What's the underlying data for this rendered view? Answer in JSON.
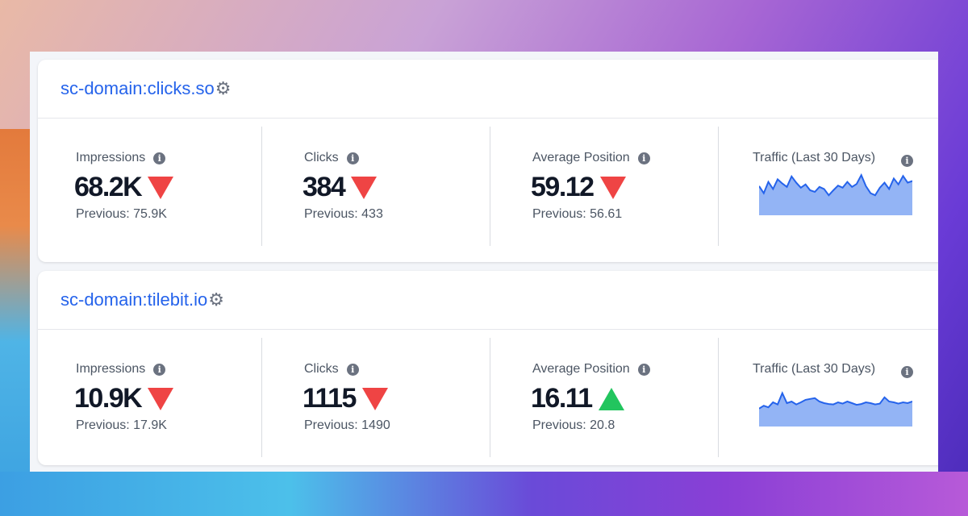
{
  "cards": [
    {
      "domain": "sc-domain:clicks.so",
      "metrics": [
        {
          "label": "Impressions",
          "value": "68.2K",
          "trend": "down",
          "previous": "Previous: 75.9K"
        },
        {
          "label": "Clicks",
          "value": "384",
          "trend": "down",
          "previous": "Previous: 433"
        },
        {
          "label": "Average Position",
          "value": "59.12",
          "trend": "down",
          "previous": "Previous: 56.61"
        }
      ],
      "traffic_label": "Traffic (Last 30 Days)",
      "sparkline": [
        0.62,
        0.45,
        0.72,
        0.55,
        0.78,
        0.68,
        0.6,
        0.85,
        0.7,
        0.58,
        0.66,
        0.52,
        0.48,
        0.6,
        0.55,
        0.4,
        0.52,
        0.63,
        0.58,
        0.72,
        0.6,
        0.67,
        0.88,
        0.62,
        0.45,
        0.4,
        0.58,
        0.7,
        0.55,
        0.8,
        0.66,
        0.86,
        0.7,
        0.74
      ]
    },
    {
      "domain": "sc-domain:tilebit.io",
      "metrics": [
        {
          "label": "Impressions",
          "value": "10.9K",
          "trend": "down",
          "previous": "Previous: 17.9K"
        },
        {
          "label": "Clicks",
          "value": "1115",
          "trend": "down",
          "previous": "Previous: 1490"
        },
        {
          "label": "Average Position",
          "value": "16.11",
          "trend": "up",
          "previous": "Previous: 20.8"
        }
      ],
      "traffic_label": "Traffic (Last 30 Days)",
      "sparkline": [
        0.35,
        0.42,
        0.38,
        0.5,
        0.45,
        0.72,
        0.48,
        0.52,
        0.45,
        0.5,
        0.56,
        0.58,
        0.6,
        0.52,
        0.48,
        0.46,
        0.45,
        0.5,
        0.47,
        0.52,
        0.48,
        0.44,
        0.46,
        0.5,
        0.48,
        0.45,
        0.47,
        0.62,
        0.52,
        0.5,
        0.47,
        0.5,
        0.48,
        0.52
      ]
    }
  ],
  "colors": {
    "accent": "#2563eb",
    "down": "#ef4444",
    "up": "#22c55e",
    "spark_fill": "#93b4f5",
    "spark_line": "#2563eb"
  }
}
